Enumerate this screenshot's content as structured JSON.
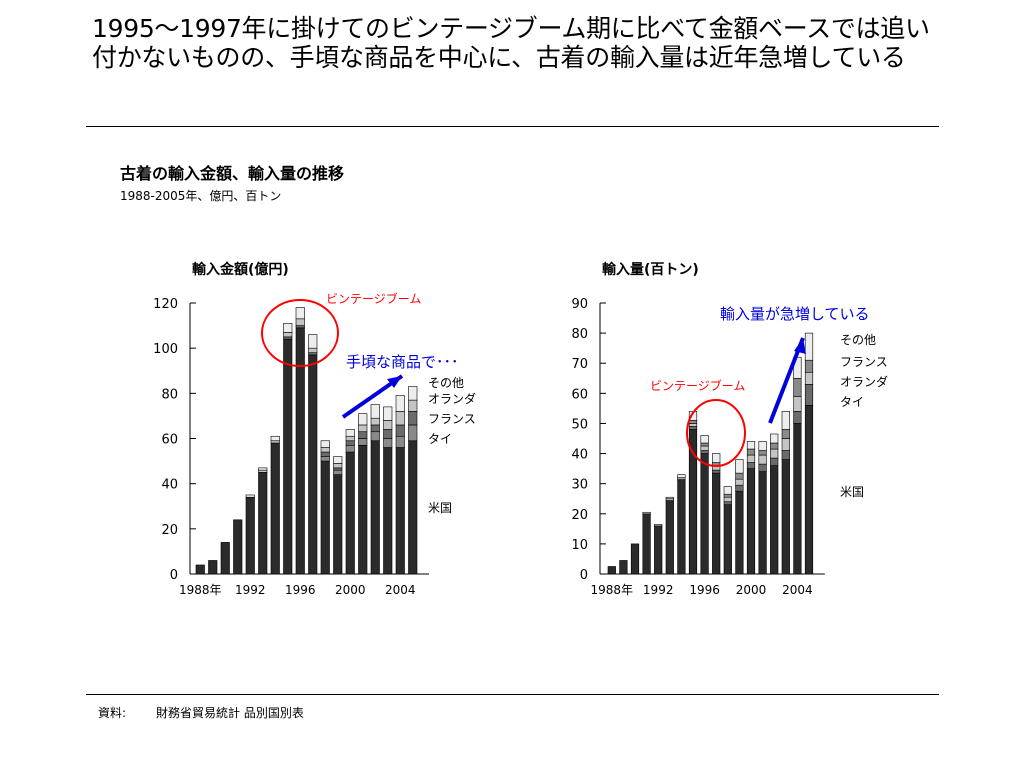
{
  "headline": "1995～1997年に掛けてのビンテージブーム期に比べて金額ベースでは追い付かないものの、手頃な商品を中心に、古着の輸入量は近年急増している",
  "figure": {
    "title": "古着の輸入金額、輸入量の推移",
    "subtitle": "1988-2005年、億円、百トン"
  },
  "source": {
    "label": "資料:",
    "text": "財務省貿易統計 品別国別表"
  },
  "colors": {
    "us": "#2b2b2b",
    "thailand": "#8a8a8a",
    "france": "#6b6b6b",
    "netherlands": "#c4c4c4",
    "other": "#ededed",
    "annotation_red": "#ff0000",
    "annotation_blue": "#0000dd"
  },
  "chart_data": [
    {
      "type": "bar",
      "stacked": true,
      "title": "輸入金額(億円)",
      "xlabel": "",
      "ylabel": "",
      "ylim": [
        0,
        120
      ],
      "yticks": [
        "0",
        "20",
        "40",
        "60",
        "80",
        "100",
        "120"
      ],
      "x": [
        1988,
        1989,
        1990,
        1991,
        1992,
        1993,
        1994,
        1995,
        1996,
        1997,
        1998,
        1999,
        2000,
        2001,
        2002,
        2003,
        2004,
        2005
      ],
      "xtick_labels": [
        "1988年",
        "1992",
        "1996",
        "2000",
        "2004"
      ],
      "xtick_years": [
        1988,
        1992,
        1996,
        2000,
        2004
      ],
      "series": [
        {
          "name": "米国",
          "values": [
            4,
            6,
            14,
            24,
            34,
            45,
            58,
            104,
            109,
            97,
            50,
            44,
            54,
            57,
            59,
            56,
            56,
            59
          ]
        },
        {
          "name": "タイ",
          "values": [
            0,
            0,
            0,
            0,
            0,
            0,
            0,
            0,
            0,
            0,
            2,
            2,
            3,
            3,
            4,
            4,
            5,
            7
          ]
        },
        {
          "name": "フランス",
          "values": [
            0,
            0,
            0,
            0,
            0,
            0,
            0,
            1,
            1,
            1,
            2,
            1,
            2,
            3,
            3,
            4,
            5,
            6
          ]
        },
        {
          "name": "オランダ",
          "values": [
            0,
            0,
            0,
            0,
            0,
            1,
            1,
            2,
            3,
            2,
            2,
            2,
            2,
            3,
            3,
            4,
            6,
            5
          ]
        },
        {
          "name": "その他",
          "values": [
            0,
            0,
            0,
            0,
            1,
            1,
            2,
            4,
            5,
            6,
            3,
            3,
            3,
            5,
            6,
            6,
            7,
            6
          ]
        }
      ],
      "legend_order_top_to_bottom": [
        "その他",
        "オランダ",
        "フランス",
        "タイ"
      ],
      "bottom_label": "米国",
      "annotations": {
        "circle_label": "ビンテージブーム",
        "arrow_label": "手頃な商品で･･･"
      }
    },
    {
      "type": "bar",
      "stacked": true,
      "title": "輸入量(百トン)",
      "xlabel": "",
      "ylabel": "",
      "ylim": [
        0,
        90
      ],
      "yticks": [
        "0",
        "10",
        "20",
        "30",
        "40",
        "50",
        "60",
        "70",
        "80",
        "90"
      ],
      "x": [
        1988,
        1989,
        1990,
        1991,
        1992,
        1993,
        1994,
        1995,
        1996,
        1997,
        1998,
        1999,
        2000,
        2001,
        2002,
        2003,
        2004,
        2005
      ],
      "xtick_labels": [
        "1988年",
        "1992",
        "1996",
        "2000",
        "2004"
      ],
      "xtick_years": [
        1988,
        1992,
        1996,
        2000,
        2004
      ],
      "series": [
        {
          "name": "米国",
          "values": [
            2.5,
            4.5,
            10,
            20,
            16,
            24,
            31,
            48,
            40,
            33.5,
            23,
            27.5,
            35,
            34,
            36,
            38,
            50,
            56
          ]
        },
        {
          "name": "フランス",
          "values": [
            0,
            0,
            0,
            0,
            0,
            0.5,
            0.5,
            1,
            1,
            1,
            1,
            2,
            2,
            2.5,
            2.5,
            3,
            4,
            7
          ]
        },
        {
          "name": "オランダ",
          "values": [
            0,
            0,
            0,
            0,
            0,
            0.5,
            0.5,
            1,
            1.5,
            1.5,
            1.5,
            2,
            2.5,
            3,
            3,
            4,
            5,
            4
          ]
        },
        {
          "name": "タイ",
          "values": [
            0,
            0,
            0,
            0,
            0,
            0,
            0,
            1,
            1,
            1,
            1,
            2,
            2,
            1.5,
            2,
            3,
            6,
            4
          ]
        },
        {
          "name": "その他",
          "values": [
            0,
            0,
            0,
            0.5,
            0.5,
            0.5,
            1,
            3,
            2.5,
            3,
            2.5,
            4.5,
            2.5,
            3,
            3,
            6,
            7,
            9
          ]
        }
      ],
      "legend_order_top_to_bottom": [
        "その他",
        "フランス",
        "オランダ",
        "タイ"
      ],
      "bottom_label": "米国",
      "annotations": {
        "circle_label": "ビンテージブーム",
        "arrow_label": "輸入量が急増している"
      }
    }
  ]
}
